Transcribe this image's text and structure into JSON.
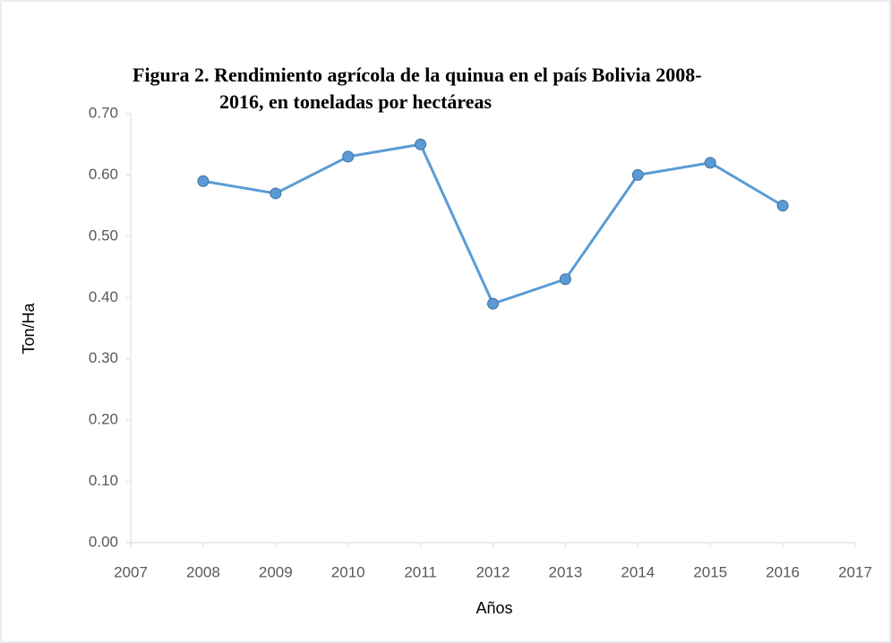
{
  "chart_data": {
    "type": "line",
    "title": [
      "Figura 2. Rendimiento agrícola de la quinua en el país Bolivia 2008-",
      "2016, en toneladas por hectáreas"
    ],
    "x_label": "Años",
    "y_label": "Ton/Ha",
    "x": [
      2008,
      2009,
      2010,
      2011,
      2012,
      2013,
      2014,
      2015,
      2016
    ],
    "series": [
      {
        "color": "#5b9bd5",
        "values": [
          0.59,
          0.57,
          0.63,
          0.65,
          0.39,
          0.43,
          0.6,
          0.62,
          0.55
        ]
      }
    ],
    "xlim": [
      2007,
      2017
    ],
    "xticks": [
      2007,
      2008,
      2009,
      2010,
      2011,
      2012,
      2013,
      2014,
      2015,
      2016,
      2017
    ],
    "ylim": [
      0,
      0.7
    ],
    "yticks": [
      {
        "value": 0,
        "label": "0.00"
      },
      {
        "value": 0.1,
        "label": "0.10"
      },
      {
        "value": 0.2,
        "label": "0.20"
      },
      {
        "value": 0.3,
        "label": "0.30"
      },
      {
        "value": 0.4,
        "label": "0.40"
      },
      {
        "value": 0.5,
        "label": "0.50"
      },
      {
        "value": 0.6,
        "label": "0.60"
      },
      {
        "value": 0.7,
        "label": "0.70"
      }
    ],
    "grid": false
  }
}
